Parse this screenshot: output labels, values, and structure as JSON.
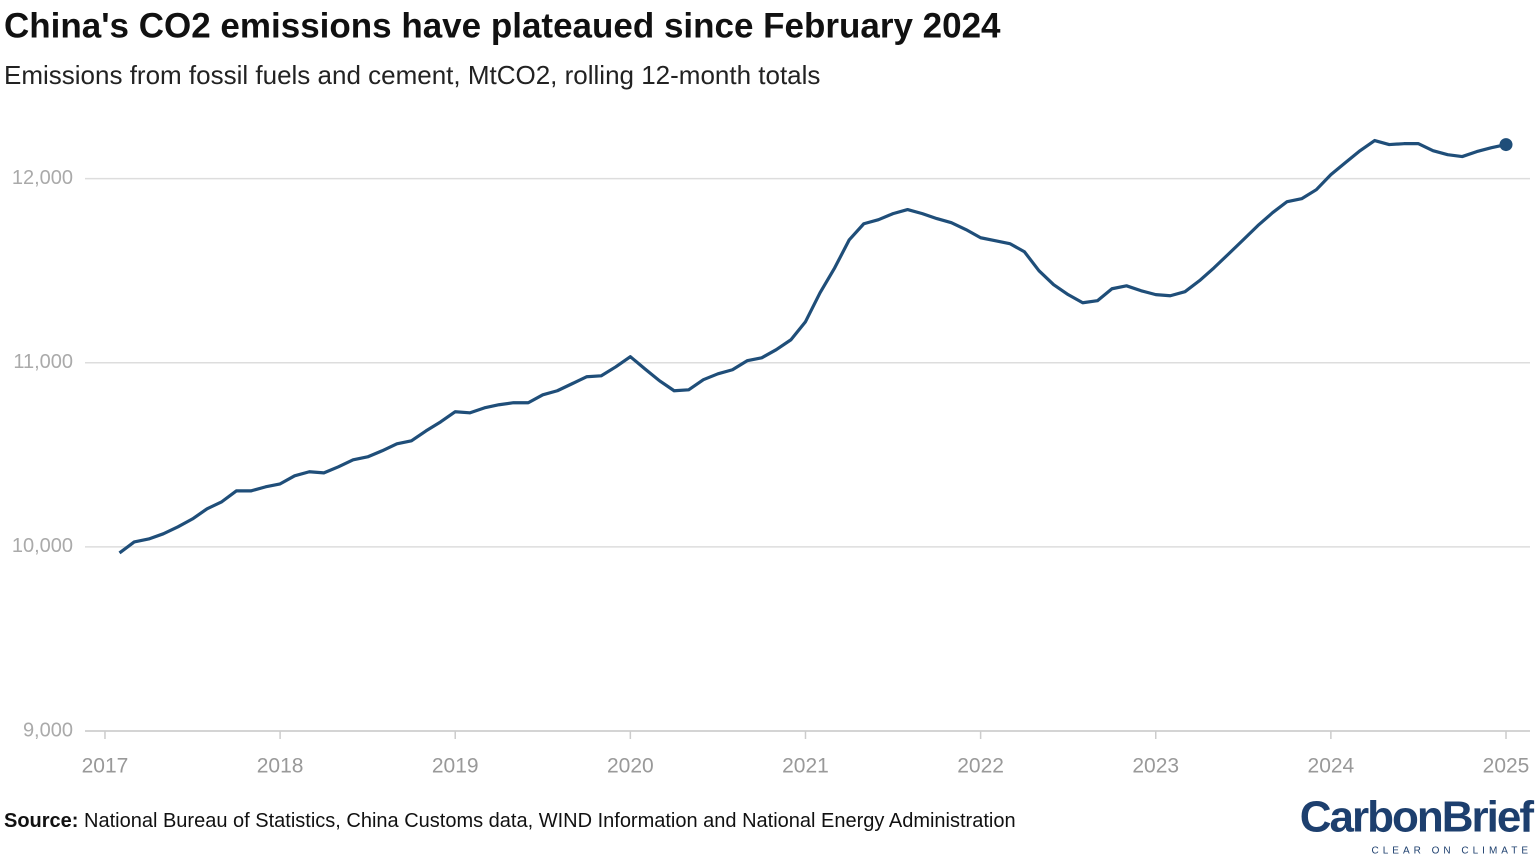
{
  "chart_data": {
    "type": "line",
    "title": "China's CO2 emissions have plateaued since February 2024",
    "subtitle": "Emissions from fossil fuels and cement, MtCO2, rolling 12-month totals",
    "source_label": "Source:",
    "source": "National Bureau of Statistics, China Customs data, WIND Information and National Energy Administration",
    "logo": "CarbonBrief",
    "logo_tagline": "CLEAR ON CLIMATE",
    "color": "#1f4e79",
    "grid": true,
    "x": [
      2017.083,
      2017.167,
      2017.25,
      2017.333,
      2017.417,
      2017.5,
      2017.583,
      2017.667,
      2017.75,
      2017.833,
      2017.917,
      2018,
      2018.083,
      2018.167,
      2018.25,
      2018.333,
      2018.417,
      2018.5,
      2018.583,
      2018.667,
      2018.75,
      2018.833,
      2018.917,
      2019,
      2019.083,
      2019.167,
      2019.25,
      2019.333,
      2019.417,
      2019.5,
      2019.583,
      2019.667,
      2019.75,
      2019.833,
      2019.917,
      2020,
      2020.083,
      2020.167,
      2020.25,
      2020.333,
      2020.417,
      2020.5,
      2020.583,
      2020.667,
      2020.75,
      2020.833,
      2020.917,
      2021,
      2021.083,
      2021.167,
      2021.25,
      2021.333,
      2021.417,
      2021.5,
      2021.583,
      2021.667,
      2021.75,
      2021.833,
      2021.917,
      2022,
      2022.083,
      2022.167,
      2022.25,
      2022.333,
      2022.417,
      2022.5,
      2022.583,
      2022.667,
      2022.75,
      2022.833,
      2022.917,
      2023,
      2023.083,
      2023.167,
      2023.25,
      2023.333,
      2023.417,
      2023.5,
      2023.583,
      2023.667,
      2023.75,
      2023.833,
      2023.917,
      2024,
      2024.083,
      2024.167,
      2024.25,
      2024.333,
      2024.417,
      2024.5,
      2024.583,
      2024.667,
      2024.75,
      2024.833,
      2024.917,
      2025
    ],
    "values": [
      9967,
      10027,
      10043,
      10071,
      10109,
      10152,
      10207,
      10245,
      10304,
      10304,
      10326,
      10342,
      10386,
      10408,
      10402,
      10435,
      10473,
      10489,
      10522,
      10560,
      10576,
      10630,
      10679,
      10734,
      10728,
      10755,
      10772,
      10783,
      10783,
      10826,
      10848,
      10886,
      10924,
      10929,
      10978,
      11033,
      10967,
      10902,
      10848,
      10853,
      10908,
      10940,
      10962,
      11011,
      11027,
      11071,
      11125,
      11223,
      11380,
      11516,
      11668,
      11755,
      11777,
      11810,
      11832,
      11810,
      11783,
      11761,
      11723,
      11679,
      11663,
      11647,
      11603,
      11500,
      11424,
      11370,
      11326,
      11337,
      11402,
      11418,
      11391,
      11370,
      11364,
      11386,
      11446,
      11516,
      11592,
      11668,
      11745,
      11815,
      11875,
      11891,
      11940,
      12022,
      12087,
      12152,
      12207,
      12185,
      12190,
      12190,
      12152,
      12130,
      12120,
      12147,
      12168,
      12185
    ],
    "xlim": [
      2016.886,
      2025.137
    ],
    "xticks": [
      2017,
      2018,
      2019,
      2020,
      2021,
      2022,
      2023,
      2024,
      2025
    ],
    "ylim": [
      9000,
      12400
    ],
    "yticks": [
      {
        "value": 9000,
        "label": "9,000"
      },
      {
        "value": 10000,
        "label": "10,000"
      },
      {
        "value": 11000,
        "label": "11,000"
      },
      {
        "value": 12000,
        "label": "12,000"
      }
    ]
  }
}
